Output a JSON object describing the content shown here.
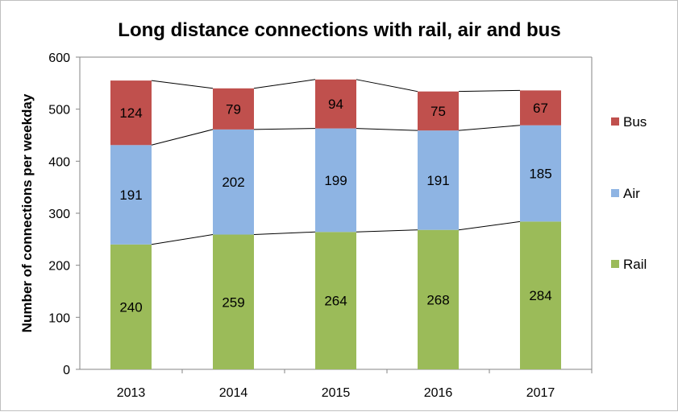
{
  "chart_data": {
    "type": "bar",
    "stacked": true,
    "title": "Long distance connections with rail, air and bus",
    "xlabel": "",
    "ylabel": "Number of connections per weekday",
    "ylim": [
      0,
      600
    ],
    "yticks": [
      0,
      100,
      200,
      300,
      400,
      500,
      600
    ],
    "grid": false,
    "legend_position": "right",
    "series_lines": true,
    "categories": [
      "2013",
      "2014",
      "2015",
      "2016",
      "2017"
    ],
    "series": [
      {
        "name": "Rail",
        "values": [
          240,
          259,
          264,
          268,
          284
        ],
        "color": "#9bbb59"
      },
      {
        "name": "Air",
        "values": [
          191,
          202,
          199,
          191,
          185
        ],
        "color": "#8eb4e3"
      },
      {
        "name": "Bus",
        "values": [
          124,
          79,
          94,
          75,
          67
        ],
        "color": "#c0504d"
      }
    ],
    "legend": [
      "Bus",
      "Air",
      "Rail"
    ]
  }
}
